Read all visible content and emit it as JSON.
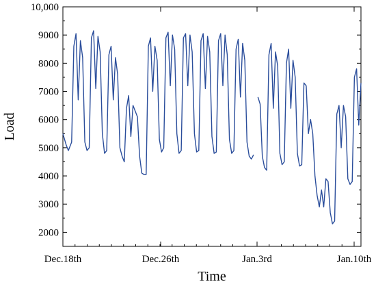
{
  "chart_data": {
    "type": "line",
    "title": "",
    "xlabel": "Time",
    "ylabel": "Load",
    "ylim": [
      1500,
      10000
    ],
    "xlim": [
      "Dec.17th",
      "Jan.10th"
    ],
    "y_ticks": [
      "2000",
      "3000",
      "4000",
      "5000",
      "6000",
      "7000",
      "8000",
      "9000",
      "10,000"
    ],
    "x_ticks": [
      "Dec.18th",
      "Dec.26th",
      "Jan.3rd",
      "Jan.10th"
    ],
    "grid": false,
    "legend": "none",
    "line_color": "#2a4d9b",
    "series": [
      {
        "values": [
          [
            0,
            5500
          ],
          [
            0.15,
            5100
          ],
          [
            0.25,
            4900
          ],
          [
            0.4,
            5200
          ],
          [
            0.5,
            8600
          ],
          [
            0.6,
            9050
          ],
          [
            0.7,
            6700
          ],
          [
            0.8,
            8800
          ],
          [
            0.9,
            8200
          ],
          [
            1.0,
            5200
          ],
          [
            1.1,
            4900
          ],
          [
            1.2,
            5000
          ],
          [
            1.3,
            8900
          ],
          [
            1.4,
            9150
          ],
          [
            1.5,
            7100
          ],
          [
            1.6,
            8950
          ],
          [
            1.7,
            8400
          ],
          [
            1.8,
            5500
          ],
          [
            1.9,
            4800
          ],
          [
            2.0,
            4900
          ],
          [
            2.1,
            8300
          ],
          [
            2.2,
            8600
          ],
          [
            2.3,
            6700
          ],
          [
            2.4,
            8200
          ],
          [
            2.5,
            7600
          ],
          [
            2.6,
            5000
          ],
          [
            2.7,
            4700
          ],
          [
            2.8,
            4500
          ],
          [
            2.9,
            6400
          ],
          [
            3.0,
            6850
          ],
          [
            3.1,
            5400
          ],
          [
            3.2,
            6500
          ],
          [
            3.3,
            6300
          ],
          [
            3.4,
            6100
          ],
          [
            3.5,
            4700
          ],
          [
            3.6,
            4100
          ],
          [
            3.7,
            4050
          ],
          [
            3.8,
            4050
          ],
          [
            3.9,
            8600
          ],
          [
            4.0,
            8900
          ],
          [
            4.1,
            7000
          ],
          [
            4.2,
            8600
          ],
          [
            4.3,
            8100
          ],
          [
            4.4,
            5300
          ],
          [
            4.5,
            4850
          ],
          [
            4.6,
            5000
          ],
          [
            4.7,
            8900
          ],
          [
            4.8,
            9100
          ],
          [
            4.9,
            7200
          ],
          [
            5.0,
            9000
          ],
          [
            5.1,
            8500
          ],
          [
            5.2,
            5500
          ],
          [
            5.3,
            4800
          ],
          [
            5.4,
            4900
          ],
          [
            5.5,
            8900
          ],
          [
            5.6,
            9050
          ],
          [
            5.7,
            7200
          ],
          [
            5.8,
            9000
          ],
          [
            5.9,
            8400
          ],
          [
            6.0,
            5500
          ],
          [
            6.1,
            4850
          ],
          [
            6.2,
            4900
          ],
          [
            6.3,
            8800
          ],
          [
            6.4,
            9050
          ],
          [
            6.5,
            7100
          ],
          [
            6.6,
            8950
          ],
          [
            6.7,
            8400
          ],
          [
            6.8,
            5400
          ],
          [
            6.9,
            4800
          ],
          [
            7.0,
            4850
          ],
          [
            7.1,
            8800
          ],
          [
            7.2,
            9050
          ],
          [
            7.3,
            7200
          ],
          [
            7.4,
            9000
          ],
          [
            7.5,
            8300
          ],
          [
            7.6,
            5300
          ],
          [
            7.7,
            4800
          ],
          [
            7.8,
            4900
          ],
          [
            7.9,
            8500
          ],
          [
            8.0,
            8850
          ],
          [
            8.1,
            6800
          ],
          [
            8.2,
            8700
          ],
          [
            8.3,
            8100
          ],
          [
            8.4,
            5200
          ],
          [
            8.5,
            4700
          ],
          [
            8.6,
            4600
          ],
          [
            8.7,
            4750
          ],
          null,
          [
            8.9,
            6800
          ],
          [
            9.0,
            6550
          ],
          [
            9.1,
            4700
          ],
          [
            9.2,
            4300
          ],
          [
            9.3,
            4200
          ],
          [
            9.4,
            8300
          ],
          [
            9.5,
            8700
          ],
          [
            9.6,
            6400
          ],
          [
            9.7,
            8400
          ],
          [
            9.8,
            7900
          ],
          [
            9.9,
            4800
          ],
          [
            10.0,
            4400
          ],
          [
            10.1,
            4500
          ],
          [
            10.2,
            8000
          ],
          [
            10.3,
            8500
          ],
          [
            10.4,
            6400
          ],
          [
            10.5,
            8100
          ],
          [
            10.6,
            7500
          ],
          [
            10.7,
            4800
          ],
          [
            10.8,
            4350
          ],
          [
            10.9,
            4400
          ],
          [
            11.0,
            7300
          ],
          [
            11.1,
            7200
          ],
          [
            11.2,
            5500
          ],
          [
            11.3,
            6000
          ],
          [
            11.4,
            5500
          ],
          [
            11.5,
            4000
          ],
          [
            11.6,
            3300
          ],
          [
            11.7,
            2900
          ],
          [
            11.8,
            3500
          ],
          [
            11.9,
            2900
          ],
          [
            12.0,
            3900
          ],
          [
            12.1,
            3800
          ],
          [
            12.2,
            2700
          ],
          [
            12.3,
            2300
          ],
          [
            12.4,
            2400
          ],
          [
            12.5,
            6200
          ],
          [
            12.6,
            6500
          ],
          [
            12.7,
            5000
          ],
          [
            12.8,
            6500
          ],
          [
            12.9,
            6100
          ],
          [
            13.0,
            3900
          ],
          [
            13.1,
            3700
          ],
          [
            13.2,
            3800
          ],
          [
            13.3,
            7500
          ],
          [
            13.4,
            7800
          ],
          [
            13.5,
            5800
          ],
          [
            13.6,
            7300
          ]
        ]
      }
    ]
  }
}
